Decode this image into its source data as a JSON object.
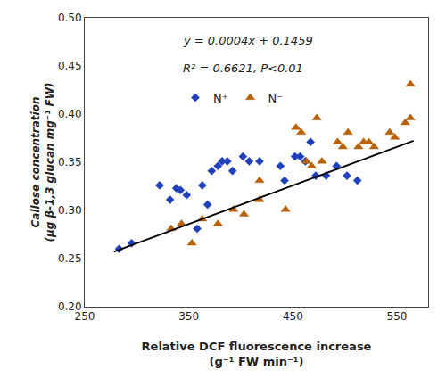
{
  "chart_data": {
    "type": "scatter",
    "xlabel": "Relative DCF fluorescence increase\n(g⁻¹ FW min⁻¹)",
    "ylabel": "Callose concentration\n(μg β-1,3 glucan mg⁻¹ FW)",
    "annotations": [
      "y = 0.0004x + 0.1459",
      "R² = 0.6621, P<0.01"
    ],
    "series": [
      {
        "name": "N⁺",
        "type": "scatter",
        "marker": "diamond",
        "color": "#1F3FBB",
        "x": [
          283,
          295,
          322,
          332,
          338,
          342,
          348,
          358,
          363,
          368,
          372,
          378,
          382,
          387,
          392,
          402,
          408,
          418,
          438,
          442,
          452,
          457,
          462,
          467,
          472,
          482,
          492,
          502,
          512
        ],
        "values": [
          0.26,
          0.266,
          0.326,
          0.311,
          0.323,
          0.321,
          0.316,
          0.281,
          0.326,
          0.306,
          0.341,
          0.346,
          0.351,
          0.351,
          0.341,
          0.356,
          0.351,
          0.351,
          0.346,
          0.331,
          0.356,
          0.356,
          0.351,
          0.371,
          0.336,
          0.336,
          0.346,
          0.336,
          0.331
        ]
      },
      {
        "name": "N⁻",
        "type": "scatter",
        "marker": "triangle-up",
        "color": "#B8600A",
        "x": [
          333,
          343,
          353,
          363,
          378,
          393,
          403,
          418,
          418,
          443,
          453,
          458,
          463,
          468,
          473,
          478,
          493,
          498,
          503,
          513,
          518,
          523,
          528,
          543,
          548,
          558,
          563,
          563
        ],
        "values": [
          0.281,
          0.286,
          0.266,
          0.291,
          0.286,
          0.301,
          0.296,
          0.311,
          0.331,
          0.301,
          0.386,
          0.381,
          0.351,
          0.346,
          0.396,
          0.351,
          0.371,
          0.366,
          0.381,
          0.366,
          0.371,
          0.371,
          0.366,
          0.381,
          0.376,
          0.391,
          0.396,
          0.431
        ]
      },
      {
        "type": "line",
        "line_style": "solid",
        "color": "#000000",
        "x": [
          278,
          566
        ],
        "values": [
          0.2571,
          0.3723
        ]
      }
    ],
    "xlim": [
      250,
      580
    ],
    "ylim": [
      0.2,
      0.5
    ],
    "xticks": [
      250,
      350,
      450,
      550
    ],
    "yticks": [
      {
        "value": 0.2,
        "label": "0.20"
      },
      0.25,
      {
        "value": 0.3,
        "label": "0.30"
      },
      0.35,
      {
        "value": 0.4,
        "label": "0.40"
      },
      0.45,
      {
        "value": 0.5,
        "label": "0.50"
      }
    ],
    "grid": false,
    "legend": "upper left"
  }
}
